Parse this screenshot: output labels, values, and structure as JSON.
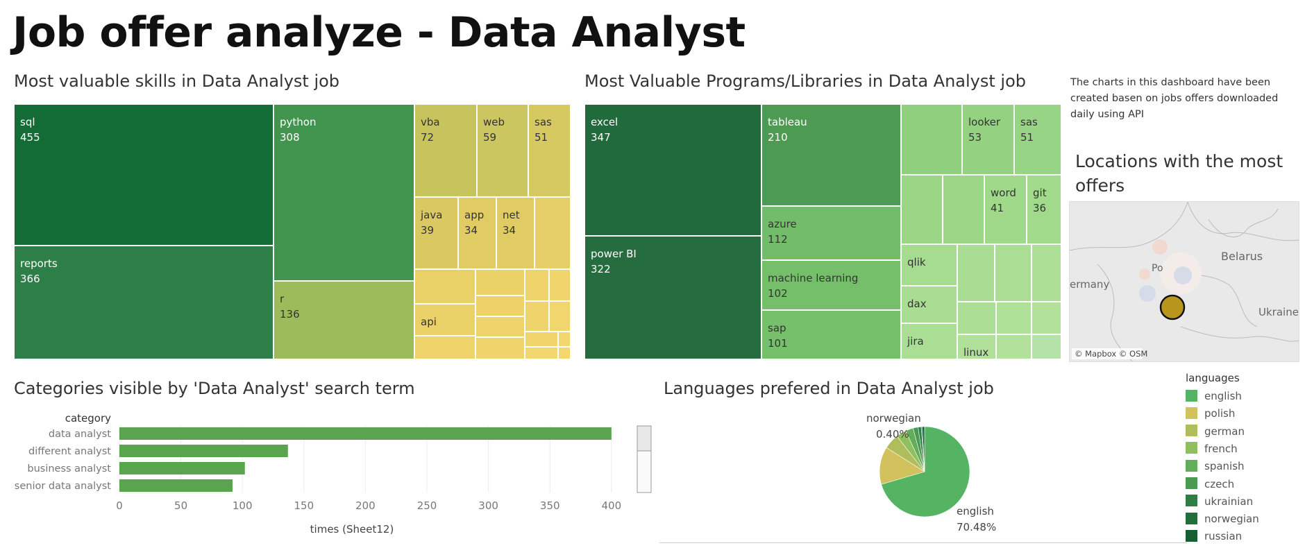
{
  "dashboard": {
    "title": "Job offer analyze - Data Analyst",
    "description": "The charts in this dashboard have been created basen on jobs offers downloaded daily using API"
  },
  "sections": {
    "skills_title": "Most valuable skills in Data Analyst job",
    "programs_title": "Most Valuable Programs/Libraries in Data Analyst job",
    "map_title": "Locations with the most offers",
    "categories_title": "Categories visible by 'Data Analyst' search term",
    "languages_title": "Languages prefered in Data Analyst job"
  },
  "map": {
    "labels": [
      "Belarus",
      "Po",
      "ermany",
      "Ukraine"
    ],
    "attribution": "© Mapbox © OSM",
    "highlight_color": "#b8961e"
  },
  "chart_data": [
    {
      "type": "treemap",
      "title": "Most valuable skills in Data Analyst job",
      "labeled": [
        {
          "name": "sql",
          "value": 455
        },
        {
          "name": "reports",
          "value": 366
        },
        {
          "name": "python",
          "value": 308
        },
        {
          "name": "r",
          "value": 136
        },
        {
          "name": "vba",
          "value": 72
        },
        {
          "name": "web",
          "value": 59
        },
        {
          "name": "sas",
          "value": 51
        },
        {
          "name": "java",
          "value": 39
        },
        {
          "name": "app",
          "value": 34
        },
        {
          "name": "net",
          "value": 34
        },
        {
          "name": "api",
          "value": null
        }
      ],
      "colors": {
        "high": "#136b35",
        "low": "#efd36a"
      }
    },
    {
      "type": "treemap",
      "title": "Most Valuable Programs/Libraries in Data Analyst job",
      "labeled": [
        {
          "name": "excel",
          "value": 347
        },
        {
          "name": "power BI",
          "value": 322
        },
        {
          "name": "tableau",
          "value": 210
        },
        {
          "name": "azure",
          "value": 112
        },
        {
          "name": "machine learning",
          "value": 102
        },
        {
          "name": "sap",
          "value": 101
        },
        {
          "name": "looker",
          "value": 53
        },
        {
          "name": "sas",
          "value": 51
        },
        {
          "name": "word",
          "value": 41
        },
        {
          "name": "git",
          "value": 36
        },
        {
          "name": "qlik",
          "value": null
        },
        {
          "name": "dax",
          "value": null
        },
        {
          "name": "jira",
          "value": null
        },
        {
          "name": "linux",
          "value": null
        }
      ],
      "colors": {
        "high": "#216a3c",
        "low": "#b5e2a8"
      }
    },
    {
      "type": "bar",
      "orientation": "horizontal",
      "title": "Categories visible by 'Data Analyst' search term",
      "row_header": "category",
      "categories": [
        "data analyst",
        "different analyst",
        "business analyst",
        "senior data analyst"
      ],
      "values": [
        400,
        137,
        102,
        92
      ],
      "xlabel": "times (Sheet12)",
      "xticks": [
        0,
        50,
        100,
        150,
        200,
        250,
        300,
        350,
        400
      ],
      "xlim": [
        0,
        430
      ],
      "color": "#5aa34f",
      "grid": true
    },
    {
      "type": "pie",
      "title": "Languages prefered in Data Analyst job",
      "legend_title": "languages",
      "legend_position": "right",
      "slices": [
        {
          "name": "english",
          "value": 70.48,
          "color": "#55b464"
        },
        {
          "name": "polish",
          "value": 13.5,
          "color": "#d2c25e"
        },
        {
          "name": "german",
          "value": 5.5,
          "color": "#afbd5c"
        },
        {
          "name": "french",
          "value": 3.6,
          "color": "#8fbf5e"
        },
        {
          "name": "spanish",
          "value": 2.8,
          "color": "#62ad5a"
        },
        {
          "name": "czech",
          "value": 1.8,
          "color": "#4a9a53"
        },
        {
          "name": "ukrainian",
          "value": 1.1,
          "color": "#2f7d45"
        },
        {
          "name": "norwegian",
          "value": 0.4,
          "color": "#21703c"
        },
        {
          "name": "russian",
          "value": 0.82,
          "color": "#155f30"
        }
      ],
      "labels": [
        {
          "name": "norwegian",
          "value": "0.40%"
        },
        {
          "name": "english",
          "value": "70.48%"
        }
      ]
    }
  ]
}
